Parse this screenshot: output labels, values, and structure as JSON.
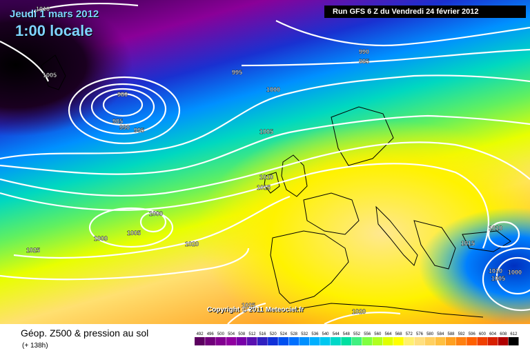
{
  "header": {
    "date": "Jeudi 1 mars 2012",
    "time": "1:00 locale",
    "run": "Run GFS 6 Z du Vendredi 24 février 2012"
  },
  "map": {
    "isobar_labels": [
      "1010",
      "1005",
      "980",
      "985",
      "990",
      "995",
      "995",
      "990",
      "995",
      "1000",
      "1005",
      "1010",
      "1015",
      "1000",
      "1005",
      "1000",
      "1020",
      "1025",
      "1010",
      "1015",
      "1010",
      "1005",
      "1000",
      "1020",
      "1025"
    ],
    "copyright": "Copyright © 2011 Meteociel.fr"
  },
  "footer": {
    "title": "Géop. Z500 & pression au sol",
    "subtitle": "(+ 138h)"
  },
  "legend": {
    "values": [
      "492",
      "496",
      "500",
      "504",
      "508",
      "512",
      "516",
      "520",
      "524",
      "528",
      "532",
      "536",
      "540",
      "544",
      "548",
      "552",
      "556",
      "560",
      "564",
      "568",
      "572",
      "576",
      "580",
      "584",
      "588",
      "592",
      "596",
      "600",
      "604",
      "608",
      "612"
    ],
    "colors": [
      "#5c0060",
      "#70007a",
      "#820090",
      "#9000a0",
      "#7800a8",
      "#5a10b0",
      "#3020c0",
      "#1030d8",
      "#0050f0",
      "#0070ff",
      "#0090ff",
      "#00b0ff",
      "#00c8f0",
      "#00d8c8",
      "#00e0a0",
      "#40f080",
      "#80ff40",
      "#b0ff20",
      "#e0ff00",
      "#ffff00",
      "#fff070",
      "#ffe080",
      "#ffd060",
      "#ffc040",
      "#ffa020",
      "#ff8010",
      "#ff6000",
      "#f04000",
      "#d82000",
      "#b00000",
      "#000000"
    ]
  }
}
